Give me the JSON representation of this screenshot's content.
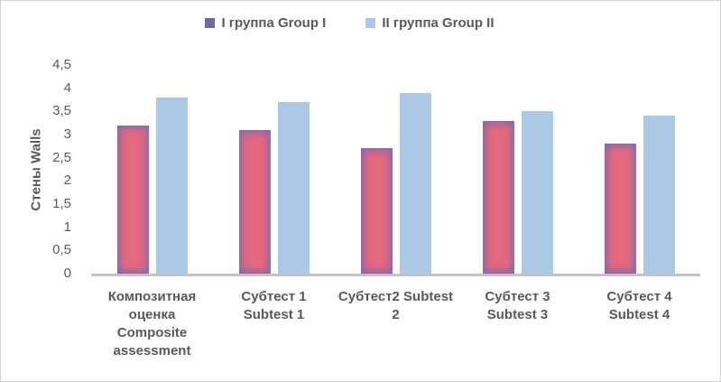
{
  "chart_data": {
    "type": "bar",
    "categories": [
      "Композитная\nоценка\nComposite\nassessment",
      "Субтест 1\nSubtest 1",
      "Субтест2 Subtest\n2",
      "Субтест 3\nSubtest 3",
      "Субтест 4\nSubtest 4"
    ],
    "series": [
      {
        "name": "I группа Group I",
        "values": [
          3.2,
          3.1,
          2.7,
          3.3,
          2.8
        ],
        "legend_color": "#7066a2",
        "fill_center": "#e5697f",
        "fill_edge": "#8168aa"
      },
      {
        "name": "II группа Group II",
        "values": [
          3.8,
          3.7,
          3.9,
          3.5,
          3.4
        ],
        "legend_color": "#abc9e6",
        "fill_center": "#abc9e6",
        "fill_edge": "#abc9e6"
      }
    ],
    "title": "",
    "xlabel": "",
    "ylabel": "Стены Walls",
    "ylim": [
      0,
      4.5
    ],
    "ytick_step": 0.5,
    "ytick_labels": [
      "0",
      "0,5",
      "1",
      "1,5",
      "2",
      "2,5",
      "3",
      "3,5",
      "4",
      "4,5"
    ],
    "grid": false,
    "legend_position": "top-center"
  },
  "colors": {
    "axis_text": "#595959",
    "baseline": "#c3c3c3",
    "frame_border": "#d2d2d2"
  }
}
